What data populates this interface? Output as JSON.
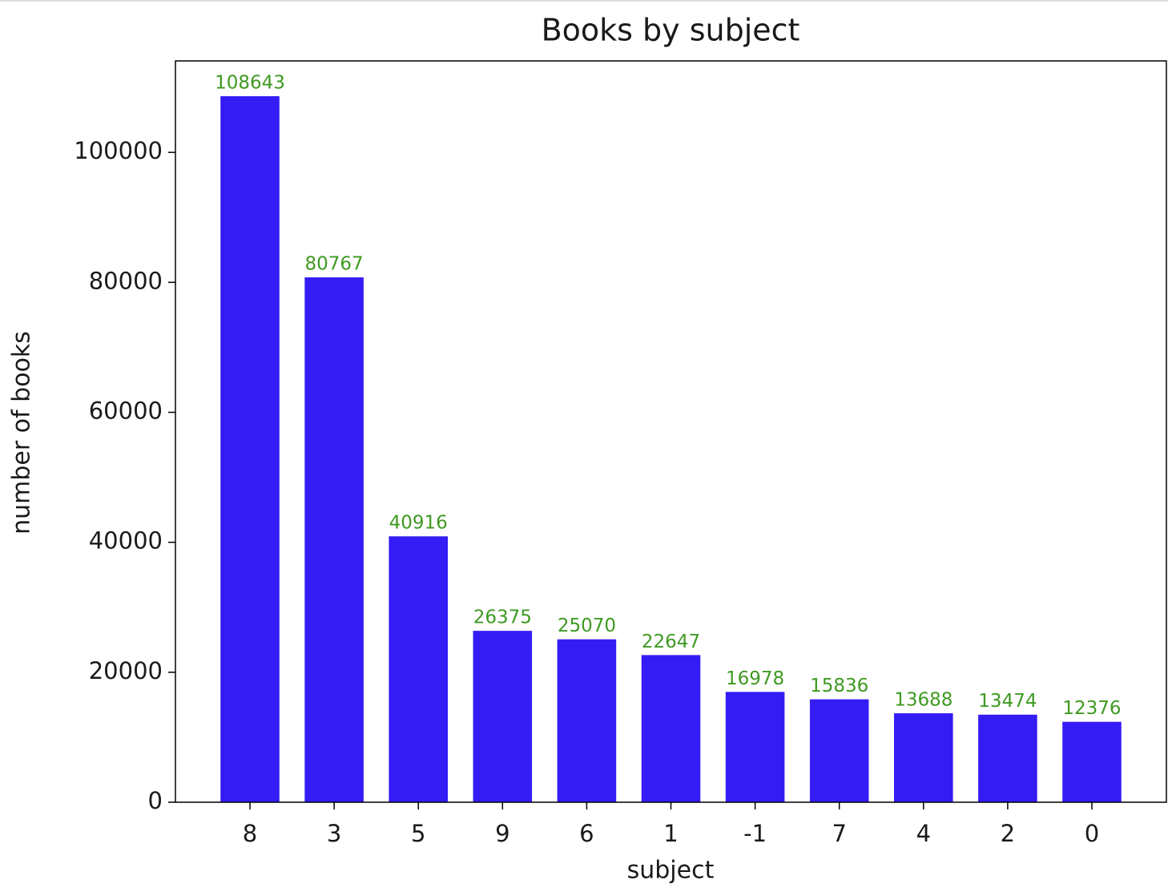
{
  "chart_data": {
    "type": "bar",
    "title": "Books by subject",
    "x_label": "subject",
    "y_label": "number of books",
    "categories": [
      "8",
      "3",
      "5",
      "9",
      "6",
      "1",
      "-1",
      "7",
      "4",
      "2",
      "0"
    ],
    "values": [
      108643,
      80767,
      40916,
      26375,
      25070,
      22647,
      16978,
      15836,
      13688,
      13474,
      12376
    ],
    "color": "#341cf5",
    "value_label_color": "#3f9a22",
    "ylim": [
      0,
      114075
    ],
    "yticks": [
      0,
      20000,
      40000,
      60000,
      80000,
      100000
    ],
    "grid": false
  }
}
